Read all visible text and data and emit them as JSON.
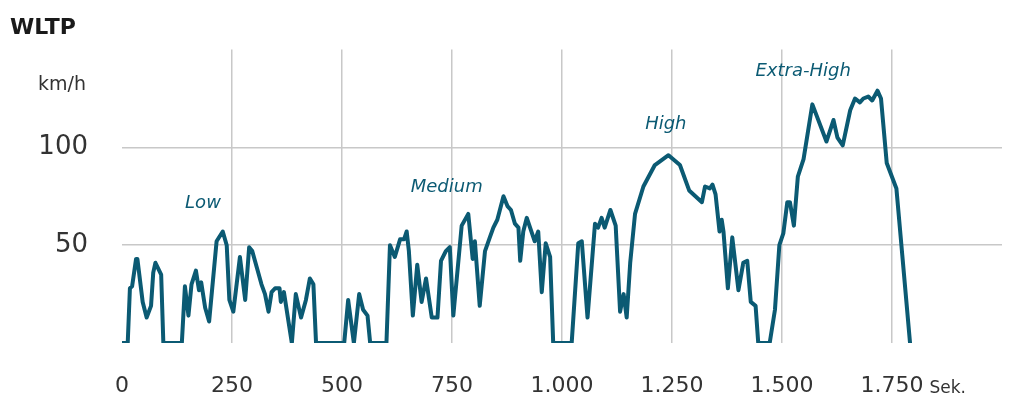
{
  "chart_data": {
    "type": "line",
    "title": "WLTP",
    "ylabel": "km/h",
    "xlabel": "Sek.",
    "x": [
      0,
      13,
      18,
      23,
      32,
      35,
      47,
      56,
      66,
      71,
      76,
      89,
      94,
      136,
      143,
      151,
      158,
      168,
      175,
      180,
      189,
      198,
      215,
      229,
      238,
      244,
      253,
      268,
      280,
      289,
      296,
      317,
      325,
      333,
      340,
      348,
      358,
      361,
      368,
      386,
      395,
      407,
      418,
      427,
      435,
      441,
      505,
      514,
      527,
      539,
      548,
      558,
      564,
      601,
      609,
      620,
      632,
      641,
      647,
      652,
      661,
      671,
      681,
      691,
      704,
      717,
      725,
      736,
      745,
      753,
      772,
      787,
      797,
      802,
      813,
      825,
      836,
      844,
      853,
      867,
      876,
      884,
      893,
      901,
      905,
      912,
      920,
      938,
      946,
      954,
      963,
      973,
      980,
      1022,
      1037,
      1045,
      1058,
      1075,
      1082,
      1090,
      1097,
      1110,
      1122,
      1132,
      1140,
      1147,
      1155,
      1166,
      1185,
      1211,
      1242,
      1268,
      1289,
      1318,
      1325,
      1336,
      1342,
      1349,
      1358,
      1363,
      1367,
      1377,
      1387,
      1401,
      1412,
      1421,
      1429,
      1440,
      1446,
      1472,
      1484,
      1494,
      1503,
      1512,
      1518,
      1527,
      1536,
      1549,
      1569,
      1601,
      1617,
      1626,
      1638,
      1655,
      1666,
      1677,
      1685,
      1696,
      1705,
      1717,
      1725,
      1738,
      1760,
      1791
    ],
    "series": [
      {
        "color": "#0b5a73",
        "values": [
          0,
          0,
          28,
          29,
          43,
          43,
          21,
          13,
          19,
          36,
          41,
          35,
          0,
          0,
          29,
          14,
          30,
          37,
          27,
          31,
          18,
          11,
          52,
          57,
          50,
          22,
          16,
          44,
          22,
          49,
          47,
          30,
          25,
          16,
          26,
          28,
          28,
          21,
          26,
          0,
          25,
          13,
          22,
          33,
          30,
          0,
          0,
          22,
          0,
          25,
          17,
          14,
          0,
          0,
          50,
          44,
          53,
          53,
          57,
          47,
          14,
          40,
          21,
          33,
          13,
          13,
          42,
          47,
          49,
          14,
          60,
          66,
          43,
          52,
          19,
          47,
          54,
          59,
          63,
          75,
          70,
          68,
          61,
          59,
          42,
          57,
          64,
          52,
          57,
          26,
          51,
          44,
          0,
          0,
          51,
          52,
          13,
          61,
          59,
          64,
          59,
          68,
          60,
          16,
          25,
          13,
          41,
          66,
          80,
          91,
          96,
          91,
          78,
          72,
          80,
          79,
          81,
          76,
          57,
          63,
          57,
          28,
          54,
          27,
          41,
          42,
          21,
          19,
          0,
          0,
          17,
          50,
          56,
          72,
          72,
          60,
          85,
          94,
          122,
          103,
          114,
          105,
          101,
          119,
          125,
          123,
          125,
          126,
          124,
          129,
          125,
          92,
          79,
          0
        ]
      }
    ],
    "xlim": [
      0,
      2000
    ],
    "ylim": [
      0,
      150
    ],
    "xticks": [
      0,
      250,
      500,
      750,
      {
        "value": 1000,
        "label": "1.000"
      },
      {
        "value": 1250,
        "label": "1.250"
      },
      {
        "value": 1500,
        "label": "1.500"
      },
      {
        "value": 1750,
        "label": "1.750"
      }
    ],
    "yticks": [
      50,
      100
    ],
    "grid": true,
    "legend": false,
    "marker": "none",
    "line_style": "solid",
    "annotations": [
      "Low",
      "Medium",
      "High",
      "Extra-High"
    ]
  }
}
